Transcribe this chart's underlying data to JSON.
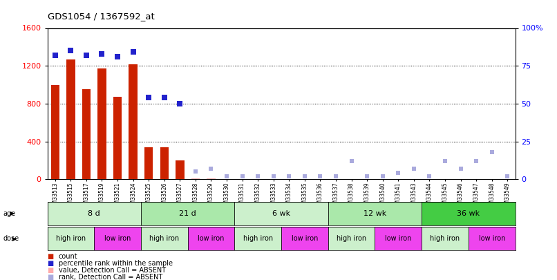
{
  "title": "GDS1054 / 1367592_at",
  "samples": [
    "GSM33513",
    "GSM33515",
    "GSM33517",
    "GSM33519",
    "GSM33521",
    "GSM33524",
    "GSM33525",
    "GSM33526",
    "GSM33527",
    "GSM33528",
    "GSM33529",
    "GSM33530",
    "GSM33531",
    "GSM33532",
    "GSM33533",
    "GSM33534",
    "GSM33535",
    "GSM33536",
    "GSM33537",
    "GSM33538",
    "GSM33539",
    "GSM33540",
    "GSM33541",
    "GSM33543",
    "GSM33544",
    "GSM33545",
    "GSM33546",
    "GSM33547",
    "GSM33548",
    "GSM33549"
  ],
  "count_present": [
    1000,
    1265,
    950,
    1170,
    870,
    1215,
    340,
    340,
    200,
    0,
    0,
    0,
    0,
    0,
    0,
    0,
    0,
    0,
    0,
    0,
    0,
    0,
    0,
    0,
    0,
    0,
    0,
    0,
    0,
    0
  ],
  "count_absent": [
    0,
    0,
    0,
    0,
    0,
    0,
    0,
    0,
    0,
    10,
    10,
    5,
    5,
    5,
    5,
    5,
    5,
    5,
    5,
    5,
    5,
    5,
    5,
    5,
    5,
    5,
    5,
    5,
    5,
    5
  ],
  "rank_present": [
    82,
    85,
    82,
    83,
    81,
    84,
    54,
    54,
    50,
    null,
    null,
    null,
    null,
    null,
    null,
    null,
    null,
    null,
    null,
    null,
    null,
    null,
    null,
    null,
    null,
    null,
    null,
    null,
    null,
    null
  ],
  "rank_absent": [
    null,
    null,
    null,
    null,
    null,
    null,
    null,
    null,
    null,
    5,
    7,
    2,
    2,
    2,
    2,
    2,
    2,
    2,
    2,
    12,
    2,
    2,
    4,
    7,
    2,
    12,
    7,
    12,
    18,
    2
  ],
  "is_absent": [
    false,
    false,
    false,
    false,
    false,
    false,
    false,
    false,
    false,
    true,
    true,
    true,
    true,
    true,
    true,
    true,
    true,
    true,
    true,
    true,
    true,
    true,
    true,
    true,
    true,
    true,
    true,
    true,
    true,
    true
  ],
  "age_groups": [
    {
      "label": "8 d",
      "start": 0,
      "end": 6,
      "color": "#ccf0cc"
    },
    {
      "label": "21 d",
      "start": 6,
      "end": 12,
      "color": "#aae8aa"
    },
    {
      "label": "6 wk",
      "start": 12,
      "end": 18,
      "color": "#ccf0cc"
    },
    {
      "label": "12 wk",
      "start": 18,
      "end": 24,
      "color": "#aae8aa"
    },
    {
      "label": "36 wk",
      "start": 24,
      "end": 30,
      "color": "#44cc44"
    }
  ],
  "dose_groups": [
    {
      "label": "high iron",
      "start": 0,
      "end": 3,
      "color": "#ccf0cc"
    },
    {
      "label": "low iron",
      "start": 3,
      "end": 6,
      "color": "#ee44ee"
    },
    {
      "label": "high iron",
      "start": 6,
      "end": 9,
      "color": "#ccf0cc"
    },
    {
      "label": "low iron",
      "start": 9,
      "end": 12,
      "color": "#ee44ee"
    },
    {
      "label": "high iron",
      "start": 12,
      "end": 15,
      "color": "#ccf0cc"
    },
    {
      "label": "low iron",
      "start": 15,
      "end": 18,
      "color": "#ee44ee"
    },
    {
      "label": "high iron",
      "start": 18,
      "end": 21,
      "color": "#ccf0cc"
    },
    {
      "label": "low iron",
      "start": 21,
      "end": 24,
      "color": "#ee44ee"
    },
    {
      "label": "high iron",
      "start": 24,
      "end": 27,
      "color": "#ccf0cc"
    },
    {
      "label": "low iron",
      "start": 27,
      "end": 30,
      "color": "#ee44ee"
    }
  ],
  "ylim_left": [
    0,
    1600
  ],
  "ylim_right": [
    0,
    100
  ],
  "yticks_left": [
    0,
    400,
    800,
    1200,
    1600
  ],
  "yticks_right": [
    0,
    25,
    50,
    75,
    100
  ],
  "bar_color": "#cc2200",
  "rank_color": "#2222cc",
  "absent_rank_color": "#aaaadd",
  "absent_count_color": "#ffaaaa",
  "bg_color": "#ffffff"
}
